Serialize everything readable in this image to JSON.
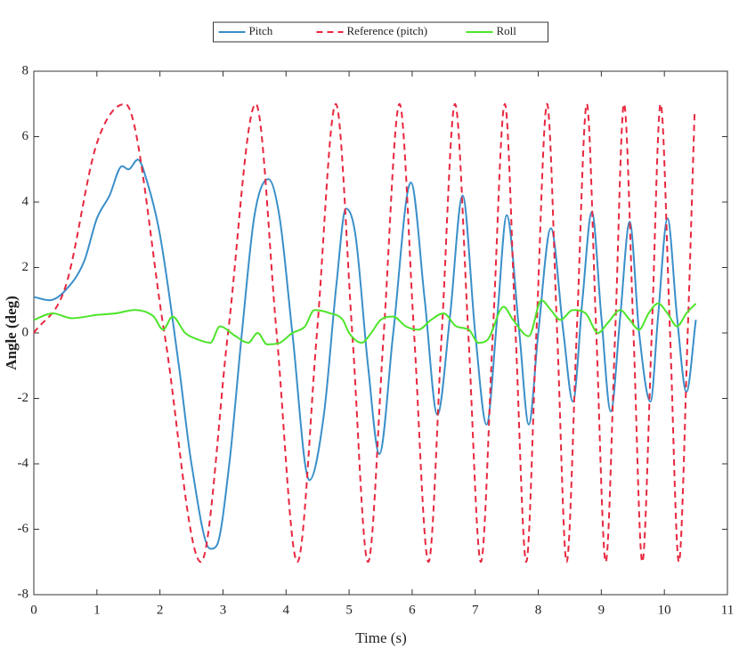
{
  "chart_data": {
    "type": "line",
    "xlabel": "Time (s)",
    "ylabel": "Angle (deg)",
    "xlim": [
      0,
      11
    ],
    "ylim": [
      -8,
      8
    ],
    "xticks": [
      0,
      1,
      2,
      3,
      4,
      5,
      6,
      7,
      8,
      9,
      10,
      11
    ],
    "yticks": [
      -8,
      -6,
      -4,
      -2,
      0,
      2,
      4,
      6,
      8
    ],
    "legend": "top",
    "series": [
      {
        "name": "Pitch",
        "color": "#3a8fc9",
        "dash": false,
        "x": [
          0,
          0.25,
          0.5,
          0.8,
          1.0,
          1.2,
          1.4,
          1.5,
          1.65,
          1.8,
          2.0,
          2.3,
          2.5,
          2.8,
          2.9,
          3.1,
          3.3,
          3.5,
          3.72,
          3.9,
          4.1,
          4.37,
          4.6,
          4.8,
          4.95,
          5.1,
          5.3,
          5.48,
          5.7,
          5.98,
          6.2,
          6.4,
          6.6,
          6.8,
          7.0,
          7.18,
          7.35,
          7.5,
          7.7,
          7.85,
          8.0,
          8.2,
          8.4,
          8.55,
          8.7,
          8.85,
          9.0,
          9.15,
          9.3,
          9.45,
          9.6,
          9.78,
          9.9,
          10.05,
          10.2,
          10.35,
          10.5
        ],
        "values": [
          1.1,
          1.0,
          1.3,
          2.2,
          3.5,
          4.2,
          5.1,
          5.0,
          5.3,
          4.6,
          3.0,
          -1,
          -4,
          -6.6,
          -6.5,
          -4,
          0,
          3.6,
          4.7,
          3.5,
          0,
          -4.5,
          -2.5,
          1.5,
          3.8,
          3.0,
          -1,
          -3.7,
          0,
          4.6,
          1,
          -2.5,
          0.5,
          4.2,
          0,
          -2.8,
          0.5,
          3.6,
          0,
          -2.8,
          0,
          3.2,
          0,
          -2.1,
          1,
          3.7,
          0.5,
          -2.4,
          0.5,
          3.4,
          0,
          -2.1,
          0.5,
          3.5,
          0.5,
          -1.8,
          0.4
        ]
      },
      {
        "name": "Reference (pitch)",
        "color": "#e8273f",
        "dash": true,
        "x": [
          0,
          0.5,
          1.0,
          1.45,
          2.07,
          2.65,
          3.08,
          3.52,
          3.85,
          4.18,
          4.49,
          4.79,
          5.05,
          5.3,
          5.55,
          5.8,
          6.03,
          6.26,
          6.47,
          6.68,
          6.89,
          7.09,
          7.28,
          7.47,
          7.64,
          7.81,
          7.97,
          8.14,
          8.3,
          8.45,
          8.61,
          8.77,
          8.92,
          9.07,
          9.22,
          9.36,
          9.51,
          9.65,
          9.8,
          9.94,
          10.09,
          10.23,
          10.37,
          10.48
        ],
        "values": [
          0,
          1.4,
          5.8,
          7,
          0,
          -7,
          0,
          7,
          0,
          -7,
          0,
          7,
          0,
          -7,
          0,
          7,
          0,
          -7,
          0,
          7,
          0,
          -7,
          0,
          7,
          0,
          -7,
          0,
          7,
          0,
          -7,
          0,
          7,
          0,
          -7,
          0,
          7,
          0,
          -7,
          0,
          7,
          0,
          -7,
          0,
          6.8
        ]
      },
      {
        "name": "Roll",
        "color": "#4ee42b",
        "dash": false,
        "x": [
          0,
          0.3,
          0.6,
          1.0,
          1.3,
          1.6,
          1.9,
          2.05,
          2.2,
          2.4,
          2.6,
          2.8,
          2.95,
          3.2,
          3.4,
          3.55,
          3.7,
          3.9,
          4.1,
          4.3,
          4.45,
          4.7,
          4.9,
          5.0,
          5.2,
          5.35,
          5.5,
          5.7,
          5.9,
          6.1,
          6.3,
          6.5,
          6.7,
          6.9,
          7.05,
          7.2,
          7.45,
          7.6,
          7.85,
          8.05,
          8.2,
          8.35,
          8.55,
          8.75,
          8.95,
          9.1,
          9.3,
          9.45,
          9.6,
          9.75,
          9.9,
          10.05,
          10.2,
          10.35,
          10.5
        ],
        "values": [
          0.4,
          0.6,
          0.45,
          0.55,
          0.6,
          0.7,
          0.5,
          0.1,
          0.5,
          0,
          -0.2,
          -0.3,
          0.2,
          -0.1,
          -0.3,
          0,
          -0.35,
          -0.3,
          0,
          0.2,
          0.7,
          0.6,
          0.4,
          0,
          -0.3,
          0,
          0.4,
          0.5,
          0.2,
          0.1,
          0.4,
          0.6,
          0.2,
          0.1,
          -0.3,
          -0.2,
          0.8,
          0.4,
          -0.1,
          1.0,
          0.7,
          0.4,
          0.7,
          0.6,
          0,
          0.3,
          0.7,
          0.4,
          0.1,
          0.6,
          0.9,
          0.6,
          0.2,
          0.6,
          0.9
        ]
      }
    ]
  }
}
